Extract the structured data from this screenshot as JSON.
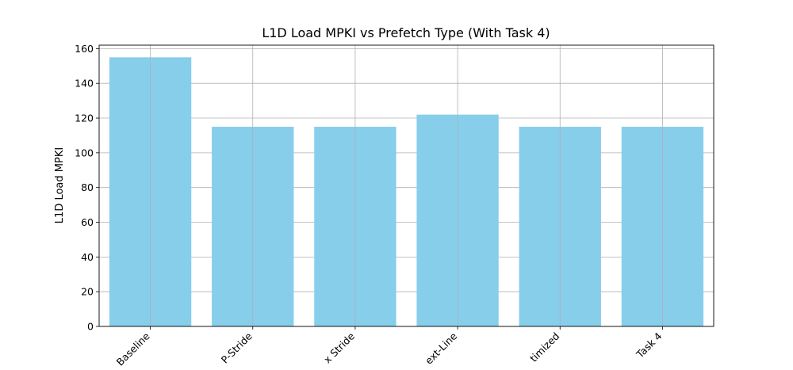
{
  "chart_data": {
    "type": "bar",
    "title": "L1D Load MPKI vs Prefetch Type (With Task 4)",
    "xlabel": "",
    "ylabel": "L1D Load MPKI",
    "categories": [
      "Baseline",
      "IP-Stride",
      "Complex Stride",
      "Next-Line",
      "Optimized",
      "Task 4"
    ],
    "categories_visible_text": [
      "Baseline",
      "P-Stride",
      "x Stride",
      "ext-Line",
      "timized",
      "Task 4"
    ],
    "values": [
      155,
      115,
      115,
      122,
      115,
      115
    ],
    "ylim": [
      0,
      162
    ],
    "yticks": [
      0,
      20,
      40,
      60,
      80,
      100,
      120,
      140,
      160
    ],
    "grid": true,
    "bar_color": "#87ceeb",
    "grid_color": "#b0b0b0"
  }
}
